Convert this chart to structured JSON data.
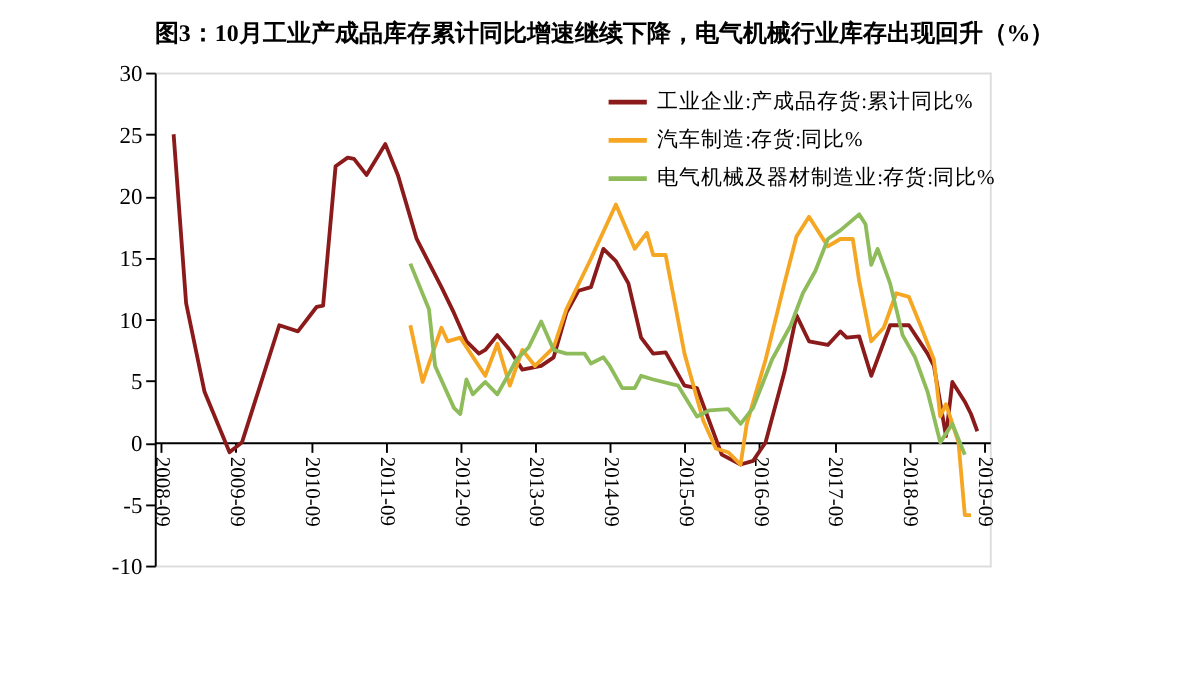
{
  "chart_data": {
    "type": "line",
    "title": "图3：10月工业产成品库存累计同比增速继续下降，电气机械行业库存出现回升（%）",
    "xlim": [
      "2008-08",
      "2019-10"
    ],
    "xticks": [
      "2008-09",
      "2009-09",
      "2010-09",
      "2011-09",
      "2012-09",
      "2013-09",
      "2014-09",
      "2015-09",
      "2016-09",
      "2017-09",
      "2018-09",
      "2019-09"
    ],
    "ylim": [
      -10,
      30
    ],
    "yticks": [
      -10,
      -5,
      0,
      5,
      10,
      15,
      20,
      25,
      30
    ],
    "grid": false,
    "legend": "top right",
    "line_style": "solid",
    "marker": "none",
    "series": [
      {
        "name": "工业企业:产成品存货:累计同比%",
        "color": "#8b1a1a",
        "x": [
          "2008-11",
          "2009-01",
          "2009-04",
          "2009-08",
          "2009-10",
          "2010-04",
          "2010-07",
          "2010-10",
          "2010-11",
          "2011-01",
          "2011-03",
          "2011-04",
          "2011-06",
          "2011-09",
          "2011-11",
          "2012-02",
          "2012-06",
          "2012-08",
          "2012-10",
          "2012-12",
          "2013-01",
          "2013-03",
          "2013-05",
          "2013-07",
          "2013-10",
          "2013-12",
          "2014-02",
          "2014-04",
          "2014-06",
          "2014-08",
          "2014-10",
          "2014-12",
          "2015-02",
          "2015-04",
          "2015-06",
          "2015-09",
          "2015-11",
          "2016-03",
          "2016-06",
          "2016-08",
          "2016-10",
          "2017-01",
          "2017-03",
          "2017-05",
          "2017-08",
          "2017-10",
          "2017-11",
          "2018-01",
          "2018-03",
          "2018-06",
          "2018-09",
          "2018-12",
          "2019-01",
          "2019-03",
          "2019-04",
          "2019-06",
          "2019-07",
          "2019-08"
        ],
        "values": [
          25,
          11.3,
          4.1,
          -0.8,
          0,
          9.5,
          9,
          11,
          11.1,
          22.4,
          23.1,
          23,
          21.7,
          24.2,
          21.7,
          16.5,
          12.6,
          10.5,
          8.2,
          7.2,
          7.5,
          8.7,
          7.5,
          5.9,
          6.2,
          6.9,
          10.5,
          12.3,
          12.6,
          15.7,
          14.7,
          12.9,
          8.5,
          7.2,
          7.3,
          4.6,
          4.4,
          -1,
          -1.8,
          -1.5,
          0,
          5.7,
          10.3,
          8.2,
          7.9,
          9,
          8.5,
          8.6,
          5.4,
          9.5,
          9.5,
          7.2,
          6.2,
          0.5,
          4.9,
          3.3,
          2.3,
          0.9
        ]
      },
      {
        "name": "汽车制造:存货:同比%",
        "color": "#f5a623",
        "x": [
          "2012-01",
          "2012-03",
          "2012-06",
          "2012-07",
          "2012-09",
          "2013-01",
          "2013-03",
          "2013-05",
          "2013-07",
          "2013-09",
          "2013-12",
          "2014-02",
          "2014-06",
          "2014-10",
          "2015-01",
          "2015-03",
          "2015-04",
          "2015-06",
          "2015-09",
          "2015-12",
          "2016-02",
          "2016-04",
          "2016-06",
          "2016-07",
          "2016-10",
          "2017-01",
          "2017-03",
          "2017-05",
          "2017-08",
          "2017-10",
          "2017-12",
          "2018-01",
          "2018-03",
          "2018-05",
          "2018-07",
          "2018-09",
          "2018-11",
          "2019-01",
          "2019-02",
          "2019-03",
          "2019-05",
          "2019-06",
          "2019-07"
        ],
        "values": [
          9.5,
          4.9,
          9.3,
          8.2,
          8.5,
          5.4,
          8,
          4.6,
          7.5,
          6.2,
          7.7,
          10.8,
          14.9,
          19.3,
          15.7,
          17,
          15.2,
          15.2,
          7.2,
          1.8,
          -0.5,
          -0.8,
          -1.8,
          1.5,
          6.7,
          12.9,
          16.7,
          18.3,
          15.9,
          16.5,
          16.5,
          13.1,
          8.2,
          9.3,
          12.1,
          11.8,
          9.3,
          6.7,
          2.1,
          3.1,
          0,
          -5.9,
          -5.9
        ]
      },
      {
        "name": "电气机械及器材制造业:存货:同比%",
        "color": "#8fbc5a",
        "x": [
          "2012-01",
          "2012-04",
          "2012-05",
          "2012-08",
          "2012-09",
          "2012-10",
          "2012-11",
          "2013-01",
          "2013-03",
          "2013-05",
          "2013-06",
          "2013-08",
          "2013-10",
          "2013-12",
          "2014-02",
          "2014-05",
          "2014-06",
          "2014-08",
          "2014-09",
          "2014-11",
          "2015-01",
          "2015-02",
          "2015-04",
          "2015-08",
          "2015-11",
          "2016-01",
          "2016-04",
          "2016-06",
          "2016-08",
          "2016-11",
          "2017-02",
          "2017-04",
          "2017-06",
          "2017-08",
          "2017-10",
          "2018-01",
          "2018-02",
          "2018-03",
          "2018-04",
          "2018-06",
          "2018-08",
          "2018-10",
          "2018-12",
          "2019-02",
          "2019-04",
          "2019-06"
        ],
        "values": [
          14.5,
          10.8,
          6.2,
          2.8,
          2.3,
          5.1,
          3.9,
          4.9,
          3.9,
          5.7,
          6.7,
          7.7,
          9.8,
          7.5,
          7.2,
          7.2,
          6.4,
          6.9,
          6.2,
          4.4,
          4.4,
          5.4,
          5.1,
          4.6,
          2.1,
          2.6,
          2.7,
          1.5,
          2.8,
          6.7,
          9.5,
          12.1,
          13.9,
          16.5,
          17.2,
          18.5,
          17.7,
          14.4,
          15.7,
          12.9,
          8.7,
          6.9,
          4.1,
          0,
          1.5,
          -1
        ]
      }
    ]
  }
}
